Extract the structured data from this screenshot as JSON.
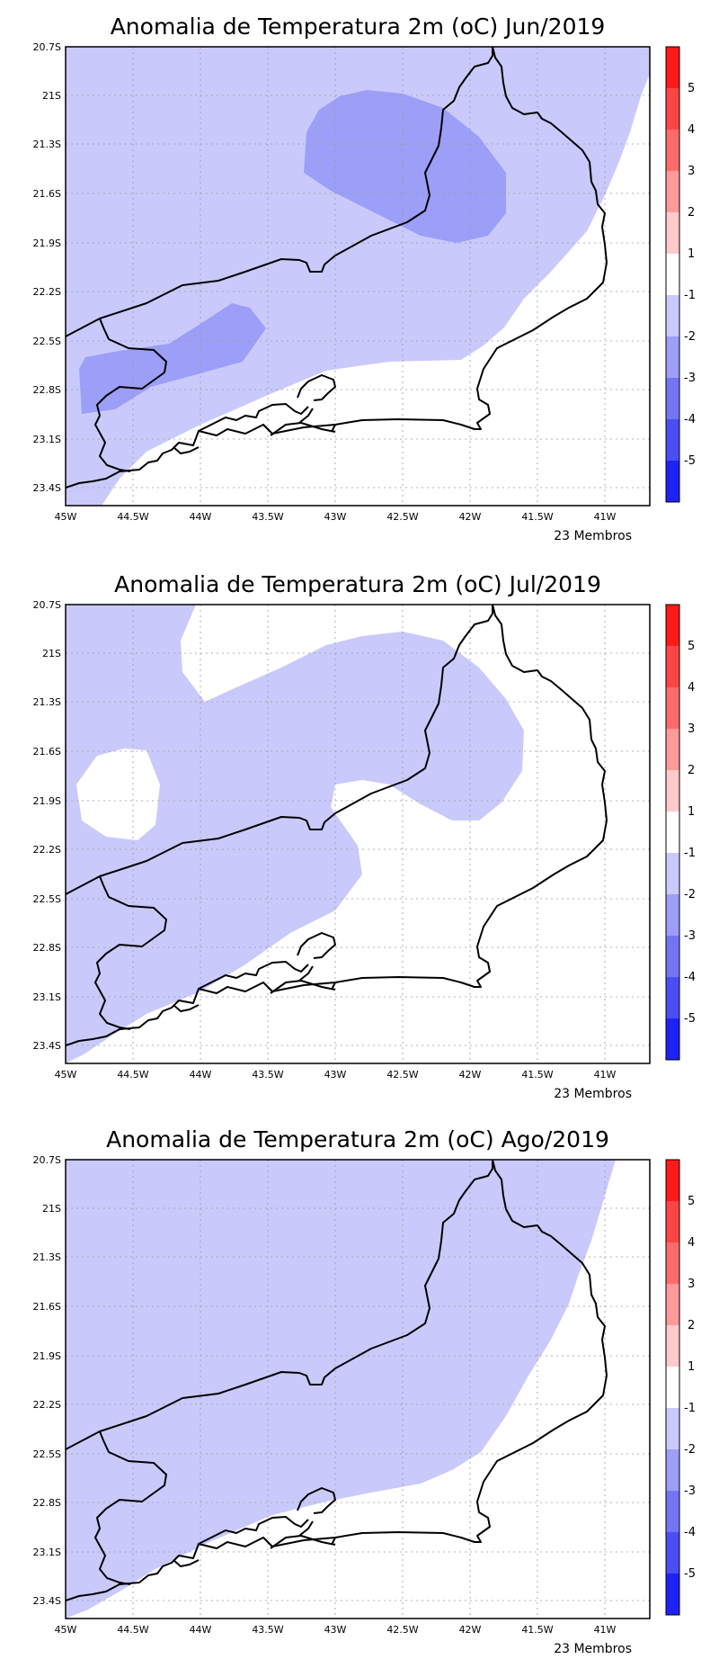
{
  "chart_data": [
    {
      "type": "map",
      "title": "Anomalia de Temperatura 2m (oC) Jun/2019",
      "x_ticks": [
        "45W",
        "44.5W",
        "44W",
        "43.5W",
        "43W",
        "42.5W",
        "42W",
        "41.5W",
        "41W"
      ],
      "y_ticks": [
        "20.7S",
        "21S",
        "21.3S",
        "21.6S",
        "21.9S",
        "22.2S",
        "22.5S",
        "22.8S",
        "23.1S",
        "23.4S"
      ],
      "lon_range": [
        -45,
        -40.7
      ],
      "lat_range": [
        -23.5,
        -20.7
      ],
      "footnote": "23 Membros",
      "regions": [
        {
          "class": "-2 to -1",
          "desc": "most of map west of coast"
        },
        {
          "class": "-3 to -2",
          "desc": "patch near 42.5W 21.6S and patch near 44.5W 22.7S"
        }
      ]
    },
    {
      "type": "map",
      "title": "Anomalia de Temperatura 2m (oC) Jul/2019",
      "x_ticks": [
        "45W",
        "44.5W",
        "44W",
        "43.5W",
        "43W",
        "42.5W",
        "42W",
        "41.5W",
        "41W"
      ],
      "y_ticks": [
        "20.7S",
        "21S",
        "21.3S",
        "21.6S",
        "21.9S",
        "22.2S",
        "22.5S",
        "22.8S",
        "23.1S",
        "23.4S"
      ],
      "lon_range": [
        -45,
        -40.7
      ],
      "lat_range": [
        -23.5,
        -20.7
      ],
      "footnote": "23 Membros",
      "regions": [
        {
          "class": "-2 to -1",
          "desc": "western and central interior"
        },
        {
          "class": "-1 to 1",
          "desc": "east, coast and small area near 44.7W 22S"
        }
      ]
    },
    {
      "type": "map",
      "title": "Anomalia de Temperatura 2m (oC) Ago/2019",
      "x_ticks": [
        "45W",
        "44.5W",
        "44W",
        "43.5W",
        "43W",
        "42.5W",
        "42W",
        "41.5W",
        "41W"
      ],
      "y_ticks": [
        "20.7S",
        "21S",
        "21.3S",
        "21.6S",
        "21.9S",
        "22.2S",
        "22.5S",
        "22.8S",
        "23.1S",
        "23.4S"
      ],
      "lon_range": [
        -45,
        -40.7
      ],
      "lat_range": [
        -23.5,
        -20.7
      ],
      "footnote": "23 Membros",
      "regions": [
        {
          "class": "-2 to -1",
          "desc": "most of map except southeast coast"
        },
        {
          "class": "-1 to 1",
          "desc": "coastal strip in southeast"
        }
      ]
    }
  ],
  "colorbar": {
    "labels": [
      "5",
      "4",
      "3",
      "2",
      "1",
      "-1",
      "-2",
      "-3",
      "-4",
      "-5"
    ],
    "colors": [
      "#ff1a1a",
      "#ff4545",
      "#ff6a6a",
      "#ff9a9a",
      "#ffcaca",
      "#ffffff",
      "#c9cafb",
      "#9c9ef8",
      "#7375f6",
      "#4b4df6",
      "#1f22f5"
    ]
  },
  "fills": {
    "weak_negative": "#c9cafb",
    "moderate_negative": "#9c9ef8",
    "neutral": "#ffffff"
  }
}
